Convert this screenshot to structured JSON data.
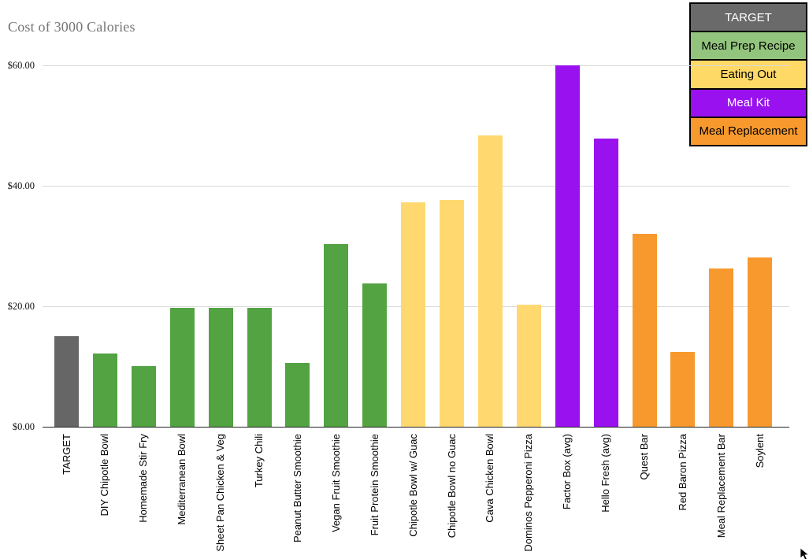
{
  "title": "Cost of 3000 Calories",
  "legend": {
    "position": "top-right",
    "items": [
      {
        "label": "TARGET",
        "bg": "#6a6a6a",
        "fg": "#ffffff"
      },
      {
        "label": "Meal Prep Recipe",
        "bg": "#93c47d",
        "fg": "#000000"
      },
      {
        "label": "Eating Out",
        "bg": "#ffd966",
        "fg": "#000000"
      },
      {
        "label": "Meal Kit",
        "bg": "#9a11f0",
        "fg": "#ffffff"
      },
      {
        "label": "Meal Replacement",
        "bg": "#f8992d",
        "fg": "#000000"
      }
    ]
  },
  "chart_data": {
    "type": "bar",
    "title": "Cost of 3000 Calories",
    "xlabel": "",
    "ylabel": "",
    "ylim": [
      0,
      60
    ],
    "grid": "horizontal",
    "legend_position": "top-right",
    "yticks": [
      {
        "value": 0,
        "label": "$0.00"
      },
      {
        "value": 20,
        "label": "$20.00"
      },
      {
        "value": 40,
        "label": "$40.00"
      },
      {
        "value": 60,
        "label": "$60.00"
      }
    ],
    "categories": [
      "TARGET",
      "DIY Chipotle Bowl",
      "Homemade Stir Fry",
      "Mediterranean Bowl",
      "Sheet Pan Chicken & Veg",
      "Turkey Chili",
      "Peanut Butter Smoothie",
      "Vegan Fruit Smoothie",
      "Fruit Protein Smoothie",
      "Chipotle Bowl w/ Guac",
      "Chipotle Bowl no Guac",
      "Cava Chicken Bowl",
      "Dominos Pepperoni Pizza",
      "Factor Box (avg)",
      "Hello Fresh (avg)",
      "Quest Bar",
      "Red Baron Pizza",
      "Meal Replacement Bar",
      "Soylent"
    ],
    "values": [
      15.0,
      12.2,
      10.1,
      19.8,
      19.7,
      19.8,
      10.6,
      30.3,
      23.8,
      37.3,
      37.6,
      48.4,
      20.3,
      60.0,
      47.8,
      32.0,
      12.4,
      26.3,
      28.1
    ],
    "groups": [
      "TARGET",
      "Meal Prep Recipe",
      "Meal Prep Recipe",
      "Meal Prep Recipe",
      "Meal Prep Recipe",
      "Meal Prep Recipe",
      "Meal Prep Recipe",
      "Meal Prep Recipe",
      "Meal Prep Recipe",
      "Eating Out",
      "Eating Out",
      "Eating Out",
      "Eating Out",
      "Meal Kit",
      "Meal Kit",
      "Meal Replacement",
      "Meal Replacement",
      "Meal Replacement",
      "Meal Replacement"
    ],
    "bar_colors": {
      "TARGET": "#666666",
      "Meal Prep Recipe": "#53a342",
      "Eating Out": "#ffd970",
      "Meal Kit": "#9a11f0",
      "Meal Replacement": "#f8992d"
    },
    "gridline_color": "#d9d9d9",
    "baseline_color": "#212121",
    "title_color": "#757575"
  }
}
